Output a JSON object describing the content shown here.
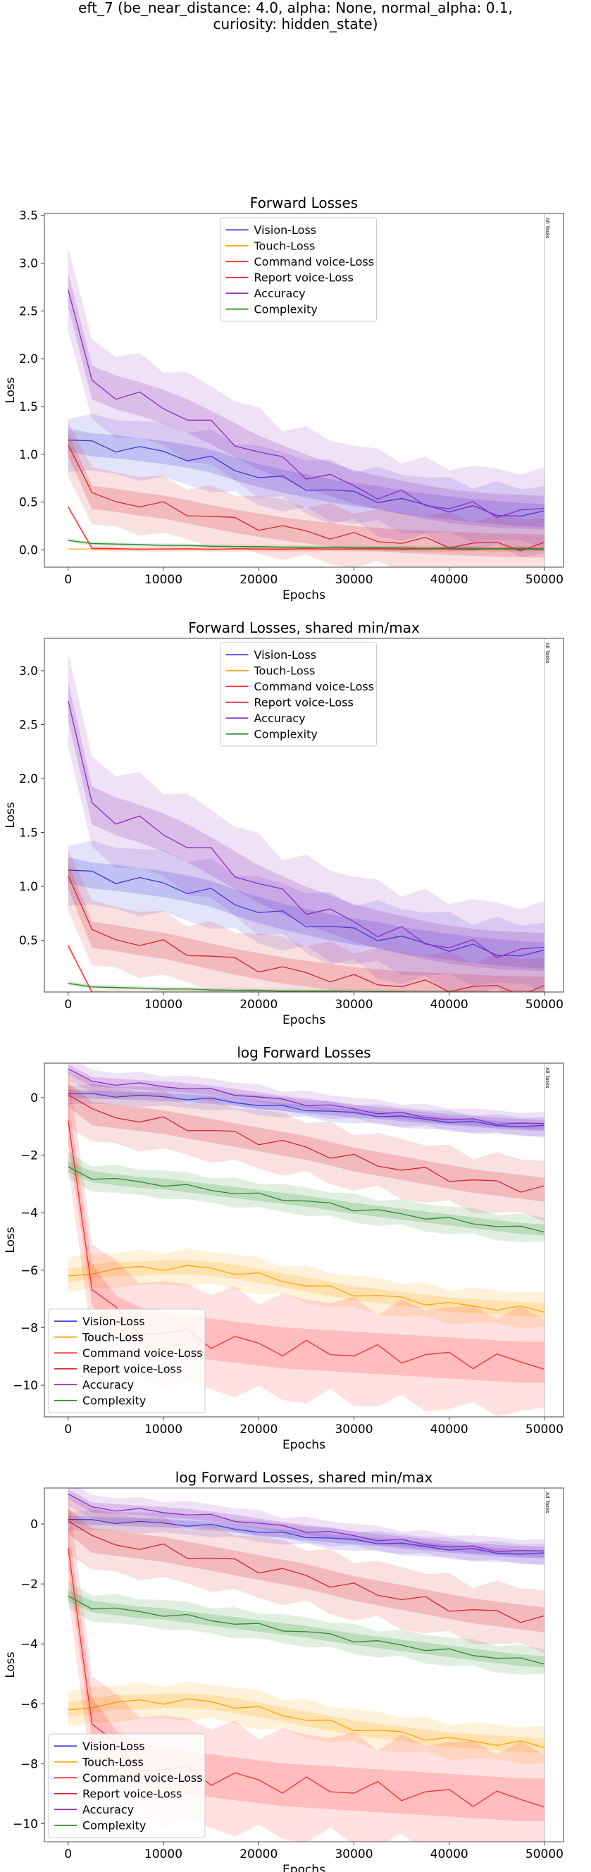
{
  "figure": {
    "title_line1": "eft_7 (be_near_distance: 4.0, alpha: None, normal_alpha: 0.1,",
    "title_line2": "curiosity: hidden_state)"
  },
  "colors": {
    "Vision-Loss": "#3b3bd9",
    "Touch-Loss": "#ffa500",
    "Command voice-Loss": "#ff2b2b",
    "Report voice-Loss": "#d6252e",
    "Accuracy": "#8e2dbf",
    "Complexity": "#2e8b2e"
  },
  "chart_data": [
    {
      "type": "line",
      "title": "Forward Losses",
      "xlabel": "Epochs",
      "ylabel": "Loss",
      "xlim": [
        -2500,
        52000
      ],
      "ylim": [
        -0.18,
        3.52
      ],
      "xticks": [
        0,
        10000,
        20000,
        30000,
        40000,
        50000
      ],
      "xtick_labels": [
        "0",
        "10000",
        "20000",
        "30000",
        "40000",
        "50000"
      ],
      "yticks": [
        0.0,
        0.5,
        1.0,
        1.5,
        2.0,
        2.5,
        3.0,
        3.5
      ],
      "ytick_labels": [
        "0.0",
        "0.5",
        "1.0",
        "1.5",
        "2.0",
        "2.5",
        "3.0",
        "3.5"
      ],
      "vline": {
        "x": 50000,
        "label": "All Tasks"
      },
      "legend": {
        "position": "upper-center"
      },
      "x": [
        0,
        2500,
        5000,
        7500,
        10000,
        12500,
        15000,
        17500,
        20000,
        22500,
        25000,
        27500,
        30000,
        32500,
        35000,
        37500,
        40000,
        42500,
        45000,
        47500,
        50000
      ],
      "series": [
        {
          "name": "Vision-Loss",
          "values": [
            1.15,
            1.1,
            1.08,
            1.05,
            1.02,
            0.98,
            0.93,
            0.85,
            0.78,
            0.72,
            0.67,
            0.62,
            0.58,
            0.55,
            0.5,
            0.47,
            0.44,
            0.41,
            0.39,
            0.37,
            0.36
          ],
          "band": 0.22
        },
        {
          "name": "Touch-Loss",
          "values": [
            0.01,
            0.01,
            0.01,
            0.01,
            0.01,
            0.01,
            0.01,
            0.01,
            0.01,
            0.01,
            0.01,
            0.01,
            0.01,
            0.01,
            0.01,
            0.01,
            0.01,
            0.01,
            0.01,
            0.01,
            0.01
          ],
          "band": 0.0
        },
        {
          "name": "Command voice-Loss",
          "values": [
            0.45,
            0.02,
            0.01,
            0.01,
            0.01,
            0.01,
            0.01,
            0.01,
            0.01,
            0.01,
            0.01,
            0.01,
            0.01,
            0.01,
            0.01,
            0.01,
            0.01,
            0.01,
            0.01,
            0.01,
            0.01
          ],
          "band": 0.02
        },
        {
          "name": "Report voice-Loss",
          "values": [
            1.1,
            0.55,
            0.52,
            0.48,
            0.45,
            0.4,
            0.35,
            0.3,
            0.26,
            0.22,
            0.19,
            0.16,
            0.13,
            0.11,
            0.09,
            0.08,
            0.07,
            0.06,
            0.05,
            0.045,
            0.04
          ],
          "band": 0.22
        },
        {
          "name": "Accuracy",
          "values": [
            2.72,
            1.75,
            1.65,
            1.58,
            1.5,
            1.4,
            1.28,
            1.15,
            1.02,
            0.92,
            0.82,
            0.74,
            0.66,
            0.6,
            0.55,
            0.5,
            0.46,
            0.43,
            0.41,
            0.4,
            0.39
          ],
          "band": 0.32
        },
        {
          "name": "Complexity",
          "values": [
            0.1,
            0.07,
            0.06,
            0.055,
            0.05,
            0.045,
            0.04,
            0.037,
            0.033,
            0.03,
            0.028,
            0.026,
            0.024,
            0.022,
            0.02,
            0.018,
            0.017,
            0.016,
            0.015,
            0.014,
            0.013
          ],
          "band": 0.015
        }
      ]
    },
    {
      "type": "line",
      "title": "Forward Losses, shared min/max",
      "xlabel": "Epochs",
      "ylabel": "Loss",
      "xlim": [
        -2500,
        52000
      ],
      "ylim": [
        0.02,
        3.3
      ],
      "xticks": [
        0,
        10000,
        20000,
        30000,
        40000,
        50000
      ],
      "xtick_labels": [
        "0",
        "10000",
        "20000",
        "30000",
        "40000",
        "50000"
      ],
      "yticks": [
        0.5,
        1.0,
        1.5,
        2.0,
        2.5,
        3.0
      ],
      "ytick_labels": [
        "0.5",
        "1.0",
        "1.5",
        "2.0",
        "2.5",
        "3.0"
      ],
      "vline": {
        "x": 50000,
        "label": "All Tasks"
      },
      "legend": {
        "position": "upper-center"
      },
      "x": [
        0,
        2500,
        5000,
        7500,
        10000,
        12500,
        15000,
        17500,
        20000,
        22500,
        25000,
        27500,
        30000,
        32500,
        35000,
        37500,
        40000,
        42500,
        45000,
        47500,
        50000
      ],
      "series": [
        {
          "name": "Vision-Loss",
          "values": [
            1.15,
            1.1,
            1.08,
            1.05,
            1.02,
            0.98,
            0.93,
            0.85,
            0.78,
            0.72,
            0.67,
            0.62,
            0.58,
            0.55,
            0.5,
            0.47,
            0.44,
            0.41,
            0.39,
            0.37,
            0.36
          ],
          "band": 0.22
        },
        {
          "name": "Touch-Loss",
          "values": [
            0.01,
            0.01,
            0.01,
            0.01,
            0.01,
            0.01,
            0.01,
            0.01,
            0.01,
            0.01,
            0.01,
            0.01,
            0.01,
            0.01,
            0.01,
            0.01,
            0.01,
            0.01,
            0.01,
            0.01,
            0.01
          ],
          "band": 0.0
        },
        {
          "name": "Command voice-Loss",
          "values": [
            0.45,
            0.02,
            0.01,
            0.01,
            0.01,
            0.01,
            0.01,
            0.01,
            0.01,
            0.01,
            0.01,
            0.01,
            0.01,
            0.01,
            0.01,
            0.01,
            0.01,
            0.01,
            0.01,
            0.01,
            0.01
          ],
          "band": 0.02
        },
        {
          "name": "Report voice-Loss",
          "values": [
            1.1,
            0.55,
            0.52,
            0.48,
            0.45,
            0.4,
            0.35,
            0.3,
            0.26,
            0.22,
            0.19,
            0.16,
            0.13,
            0.11,
            0.09,
            0.08,
            0.07,
            0.06,
            0.05,
            0.045,
            0.04
          ],
          "band": 0.22
        },
        {
          "name": "Accuracy",
          "values": [
            2.72,
            1.75,
            1.65,
            1.58,
            1.5,
            1.4,
            1.28,
            1.15,
            1.02,
            0.92,
            0.82,
            0.74,
            0.66,
            0.6,
            0.55,
            0.5,
            0.46,
            0.43,
            0.41,
            0.4,
            0.39
          ],
          "band": 0.32
        },
        {
          "name": "Complexity",
          "values": [
            0.1,
            0.07,
            0.06,
            0.055,
            0.05,
            0.045,
            0.04,
            0.037,
            0.033,
            0.03,
            0.028,
            0.026,
            0.024,
            0.022,
            0.02,
            0.018,
            0.017,
            0.016,
            0.015,
            0.014,
            0.013
          ],
          "band": 0.015
        }
      ]
    },
    {
      "type": "line",
      "title": "log Forward Losses",
      "xlabel": "Epochs",
      "ylabel": "Loss",
      "xlim": [
        -2500,
        52000
      ],
      "ylim": [
        -11.1,
        1.2
      ],
      "xticks": [
        0,
        10000,
        20000,
        30000,
        40000,
        50000
      ],
      "xtick_labels": [
        "0",
        "10000",
        "20000",
        "30000",
        "40000",
        "50000"
      ],
      "yticks": [
        0,
        -2,
        -4,
        -6,
        -8,
        -10
      ],
      "ytick_labels": [
        "0",
        "−2",
        "−4",
        "−6",
        "−8",
        "−10"
      ],
      "vline": {
        "x": 50000,
        "label": "All Tasks"
      },
      "legend": {
        "position": "lower-left"
      },
      "x": [
        0,
        2500,
        5000,
        7500,
        10000,
        12500,
        15000,
        17500,
        20000,
        22500,
        25000,
        27500,
        30000,
        32500,
        35000,
        37500,
        40000,
        42500,
        45000,
        47500,
        50000
      ],
      "series": [
        {
          "name": "Vision-Loss",
          "values": [
            0.15,
            0.1,
            0.08,
            0.05,
            0.02,
            -0.02,
            -0.07,
            -0.15,
            -0.25,
            -0.33,
            -0.4,
            -0.48,
            -0.55,
            -0.6,
            -0.68,
            -0.75,
            -0.82,
            -0.88,
            -0.94,
            -0.99,
            -1.02
          ],
          "band": 0.25
        },
        {
          "name": "Touch-Loss",
          "values": [
            -6.2,
            -6.05,
            -5.95,
            -5.95,
            -5.9,
            -5.9,
            -5.95,
            -6.05,
            -6.2,
            -6.35,
            -6.5,
            -6.65,
            -6.8,
            -6.9,
            -7.0,
            -7.1,
            -7.2,
            -7.25,
            -7.3,
            -7.35,
            -7.4
          ],
          "band": 0.45
        },
        {
          "name": "Command voice-Loss",
          "values": [
            -0.8,
            -6.5,
            -7.6,
            -8.0,
            -8.2,
            -8.3,
            -8.4,
            -8.5,
            -8.6,
            -8.7,
            -8.75,
            -8.8,
            -8.85,
            -8.9,
            -8.95,
            -9.0,
            -9.05,
            -9.1,
            -9.15,
            -9.2,
            -9.2
          ],
          "band": 1.3
        },
        {
          "name": "Report voice-Loss",
          "values": [
            0.1,
            -0.55,
            -0.65,
            -0.75,
            -0.85,
            -1.0,
            -1.15,
            -1.3,
            -1.45,
            -1.6,
            -1.75,
            -1.95,
            -2.15,
            -2.3,
            -2.45,
            -2.6,
            -2.75,
            -2.9,
            -3.0,
            -3.1,
            -3.2
          ],
          "band": 0.75
        },
        {
          "name": "Accuracy",
          "values": [
            1.0,
            0.55,
            0.5,
            0.45,
            0.4,
            0.34,
            0.25,
            0.14,
            0.02,
            -0.1,
            -0.2,
            -0.3,
            -0.4,
            -0.5,
            -0.58,
            -0.66,
            -0.74,
            -0.8,
            -0.86,
            -0.9,
            -0.94
          ],
          "band": 0.3
        },
        {
          "name": "Complexity",
          "values": [
            -2.4,
            -2.75,
            -2.85,
            -2.95,
            -3.0,
            -3.1,
            -3.2,
            -3.3,
            -3.4,
            -3.5,
            -3.6,
            -3.72,
            -3.85,
            -3.95,
            -4.05,
            -4.15,
            -4.25,
            -4.35,
            -4.45,
            -4.55,
            -4.6
          ],
          "band": 0.35
        }
      ]
    },
    {
      "type": "line",
      "title": "log Forward Losses, shared min/max",
      "xlabel": "Epochs",
      "ylabel": "Loss",
      "xlim": [
        -2500,
        52000
      ],
      "ylim": [
        -10.6,
        1.2
      ],
      "xticks": [
        0,
        10000,
        20000,
        30000,
        40000,
        50000
      ],
      "xtick_labels": [
        "0",
        "10000",
        "20000",
        "30000",
        "40000",
        "50000"
      ],
      "yticks": [
        0,
        -2,
        -4,
        -6,
        -8,
        -10
      ],
      "ytick_labels": [
        "0",
        "−2",
        "−4",
        "−6",
        "−8",
        "−10"
      ],
      "vline": {
        "x": 50000,
        "label": "All Tasks"
      },
      "legend": {
        "position": "lower-left"
      },
      "x": [
        0,
        2500,
        5000,
        7500,
        10000,
        12500,
        15000,
        17500,
        20000,
        22500,
        25000,
        27500,
        30000,
        32500,
        35000,
        37500,
        40000,
        42500,
        45000,
        47500,
        50000
      ],
      "series": [
        {
          "name": "Vision-Loss",
          "values": [
            0.15,
            0.1,
            0.08,
            0.05,
            0.02,
            -0.02,
            -0.07,
            -0.15,
            -0.25,
            -0.33,
            -0.4,
            -0.48,
            -0.55,
            -0.6,
            -0.68,
            -0.75,
            -0.82,
            -0.88,
            -0.94,
            -0.99,
            -1.02
          ],
          "band": 0.25
        },
        {
          "name": "Touch-Loss",
          "values": [
            -6.2,
            -6.05,
            -5.95,
            -5.95,
            -5.9,
            -5.9,
            -5.95,
            -6.05,
            -6.2,
            -6.35,
            -6.5,
            -6.65,
            -6.8,
            -6.9,
            -7.0,
            -7.1,
            -7.2,
            -7.25,
            -7.3,
            -7.35,
            -7.4
          ],
          "band": 0.45
        },
        {
          "name": "Command voice-Loss",
          "values": [
            -0.8,
            -6.5,
            -7.6,
            -8.0,
            -8.2,
            -8.3,
            -8.4,
            -8.5,
            -8.6,
            -8.7,
            -8.75,
            -8.8,
            -8.85,
            -8.9,
            -8.95,
            -9.0,
            -9.05,
            -9.1,
            -9.15,
            -9.2,
            -9.2
          ],
          "band": 1.3
        },
        {
          "name": "Report voice-Loss",
          "values": [
            0.1,
            -0.55,
            -0.65,
            -0.75,
            -0.85,
            -1.0,
            -1.15,
            -1.3,
            -1.45,
            -1.6,
            -1.75,
            -1.95,
            -2.15,
            -2.3,
            -2.45,
            -2.6,
            -2.75,
            -2.9,
            -3.0,
            -3.1,
            -3.2
          ],
          "band": 0.75
        },
        {
          "name": "Accuracy",
          "values": [
            1.0,
            0.55,
            0.5,
            0.45,
            0.4,
            0.34,
            0.25,
            0.14,
            0.02,
            -0.1,
            -0.2,
            -0.3,
            -0.4,
            -0.5,
            -0.58,
            -0.66,
            -0.74,
            -0.8,
            -0.86,
            -0.9,
            -0.94
          ],
          "band": 0.3
        },
        {
          "name": "Complexity",
          "values": [
            -2.4,
            -2.75,
            -2.85,
            -2.95,
            -3.0,
            -3.1,
            -3.2,
            -3.3,
            -3.4,
            -3.5,
            -3.6,
            -3.72,
            -3.85,
            -3.95,
            -4.05,
            -4.15,
            -4.25,
            -4.35,
            -4.45,
            -4.55,
            -4.6
          ],
          "band": 0.35
        }
      ]
    }
  ]
}
